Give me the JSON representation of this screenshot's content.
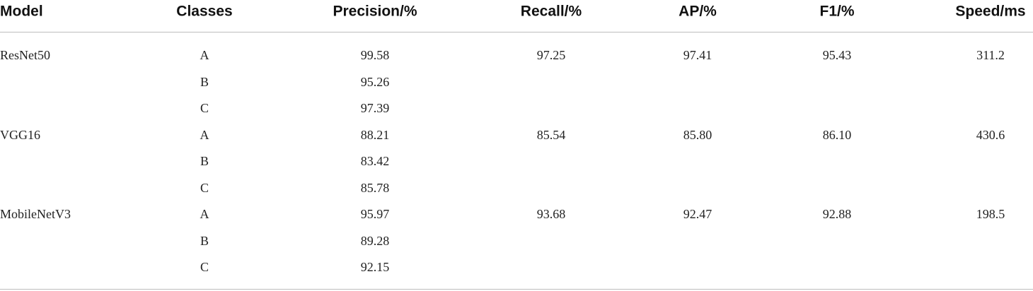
{
  "table": {
    "header": [
      "Model",
      "Classes",
      "Precision/%",
      "Recall/%",
      "AP/%",
      "F1/%",
      "Speed/ms"
    ],
    "groups": [
      {
        "model": "ResNet50",
        "recall": "97.25",
        "ap": "97.41",
        "f1": "95.43",
        "speed": "311.2",
        "classes": [
          {
            "class": "A",
            "precision": "99.58"
          },
          {
            "class": "B",
            "precision": "95.26"
          },
          {
            "class": "C",
            "precision": "97.39"
          }
        ]
      },
      {
        "model": "VGG16",
        "recall": "85.54",
        "ap": "85.80",
        "f1": "86.10",
        "speed": "430.6",
        "classes": [
          {
            "class": "A",
            "precision": "88.21"
          },
          {
            "class": "B",
            "precision": "83.42"
          },
          {
            "class": "C",
            "precision": "85.78"
          }
        ]
      },
      {
        "model": "MobileNetV3",
        "recall": "93.68",
        "ap": "92.47",
        "f1": "92.88",
        "speed": "198.5",
        "classes": [
          {
            "class": "A",
            "precision": "95.97"
          },
          {
            "class": "B",
            "precision": "89.28"
          },
          {
            "class": "C",
            "precision": "92.15"
          }
        ]
      }
    ]
  }
}
